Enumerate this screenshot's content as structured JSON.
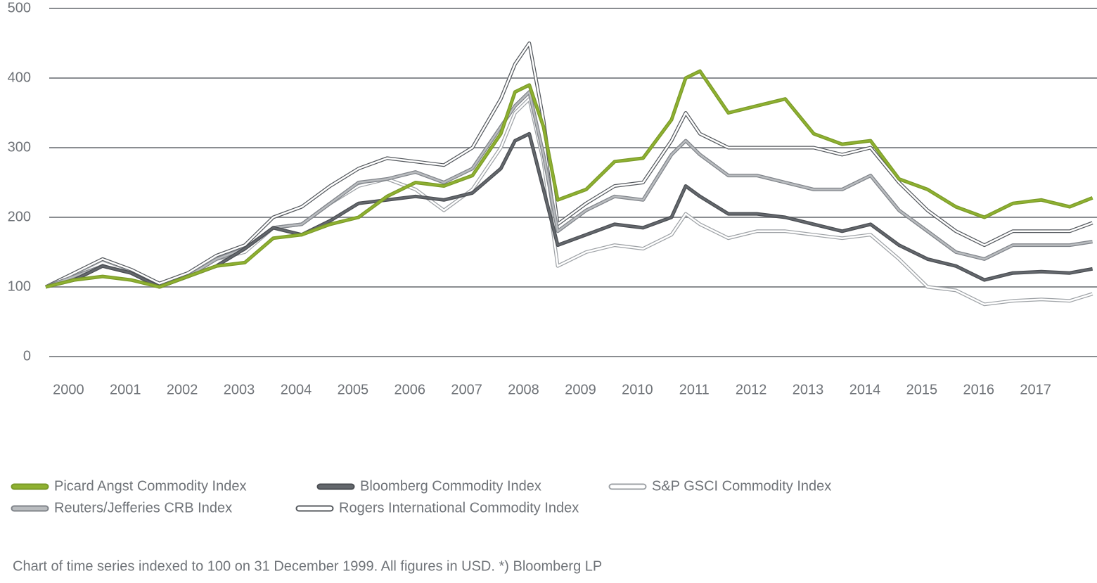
{
  "chart_data": {
    "type": "line",
    "x": [
      2000,
      2000.5,
      2001,
      2001.5,
      2002,
      2002.5,
      2003,
      2003.5,
      2004,
      2004.5,
      2005,
      2005.5,
      2006,
      2006.5,
      2007,
      2007.5,
      2008,
      2008.25,
      2008.5,
      2008.75,
      2009,
      2009.5,
      2010,
      2010.5,
      2011,
      2011.25,
      2011.5,
      2012,
      2012.5,
      2013,
      2013.5,
      2014,
      2014.5,
      2015,
      2015.5,
      2016,
      2016.5,
      2017,
      2017.5,
      2018,
      2018.4
    ],
    "series": [
      {
        "name": "Rogers International Commodity Index",
        "color": "#ffffff",
        "edge_color": "#55595e",
        "values": [
          100,
          120,
          140,
          125,
          105,
          120,
          145,
          160,
          200,
          215,
          245,
          270,
          285,
          280,
          275,
          300,
          370,
          420,
          450,
          340,
          190,
          220,
          245,
          250,
          310,
          350,
          320,
          300,
          300,
          300,
          300,
          290,
          300,
          250,
          210,
          180,
          160,
          180,
          180,
          180,
          192
        ]
      },
      {
        "name": "S&P GSCI Commodity Index",
        "color": "#ffffff",
        "edge_color": "#9ea2a6",
        "values": [
          100,
          115,
          135,
          120,
          100,
          115,
          140,
          150,
          185,
          190,
          220,
          245,
          255,
          240,
          210,
          240,
          300,
          350,
          370,
          280,
          130,
          150,
          160,
          155,
          175,
          205,
          190,
          170,
          180,
          180,
          175,
          170,
          175,
          140,
          100,
          95,
          75,
          80,
          82,
          80,
          90
        ]
      },
      {
        "name": "Reuters/Jefferies CRB Index",
        "color": "#b9bcbf",
        "edge_color": "#80848a",
        "values": [
          100,
          115,
          130,
          120,
          100,
          115,
          140,
          155,
          185,
          190,
          220,
          250,
          255,
          265,
          250,
          270,
          330,
          360,
          380,
          290,
          180,
          210,
          230,
          225,
          290,
          310,
          290,
          260,
          260,
          250,
          240,
          240,
          260,
          210,
          180,
          150,
          140,
          160,
          160,
          160,
          165
        ]
      },
      {
        "name": "Bloomberg Commodity Index",
        "color": "#64686d",
        "edge_color": "#4a4d52",
        "values": [
          100,
          110,
          130,
          120,
          100,
          115,
          130,
          155,
          185,
          175,
          195,
          220,
          225,
          230,
          225,
          235,
          270,
          310,
          320,
          240,
          160,
          175,
          190,
          185,
          200,
          245,
          230,
          205,
          205,
          200,
          190,
          180,
          190,
          160,
          140,
          130,
          110,
          120,
          122,
          120,
          126
        ]
      },
      {
        "name": "Picard Angst Commodity Index",
        "color": "#8fb131",
        "edge_color": "#7a9a28",
        "values": [
          100,
          110,
          115,
          110,
          100,
          115,
          130,
          135,
          170,
          175,
          190,
          200,
          230,
          250,
          245,
          260,
          320,
          380,
          390,
          330,
          225,
          240,
          280,
          285,
          340,
          400,
          410,
          350,
          360,
          370,
          320,
          305,
          310,
          255,
          240,
          215,
          200,
          220,
          225,
          215,
          228
        ]
      }
    ],
    "legend_order": [
      4,
      3,
      1,
      2,
      0
    ],
    "xlim": [
      2000,
      2018.4
    ],
    "xticks": [
      {
        "value": 2000.4,
        "label": "2000"
      },
      {
        "value": 2001.4,
        "label": "2001"
      },
      {
        "value": 2002.4,
        "label": "2002"
      },
      {
        "value": 2003.4,
        "label": "2003"
      },
      {
        "value": 2004.4,
        "label": "2004"
      },
      {
        "value": 2005.4,
        "label": "2005"
      },
      {
        "value": 2006.4,
        "label": "2006"
      },
      {
        "value": 2007.4,
        "label": "2007"
      },
      {
        "value": 2008.4,
        "label": "2008"
      },
      {
        "value": 2009.4,
        "label": "2009"
      },
      {
        "value": 2010.4,
        "label": "2010"
      },
      {
        "value": 2011.4,
        "label": "2011"
      },
      {
        "value": 2012.4,
        "label": "2012"
      },
      {
        "value": 2013.4,
        "label": "2013"
      },
      {
        "value": 2014.4,
        "label": "2014"
      },
      {
        "value": 2015.4,
        "label": "2015"
      },
      {
        "value": 2016.4,
        "label": "2016"
      },
      {
        "value": 2017.4,
        "label": "2017"
      }
    ],
    "ylim": [
      0,
      500
    ],
    "yticks": [
      0,
      100,
      200,
      300,
      400,
      500
    ],
    "grid": true,
    "footnote": "Chart of time series indexed to 100 on 31 December 1999. All figures in USD. *) Bloomberg LP"
  }
}
